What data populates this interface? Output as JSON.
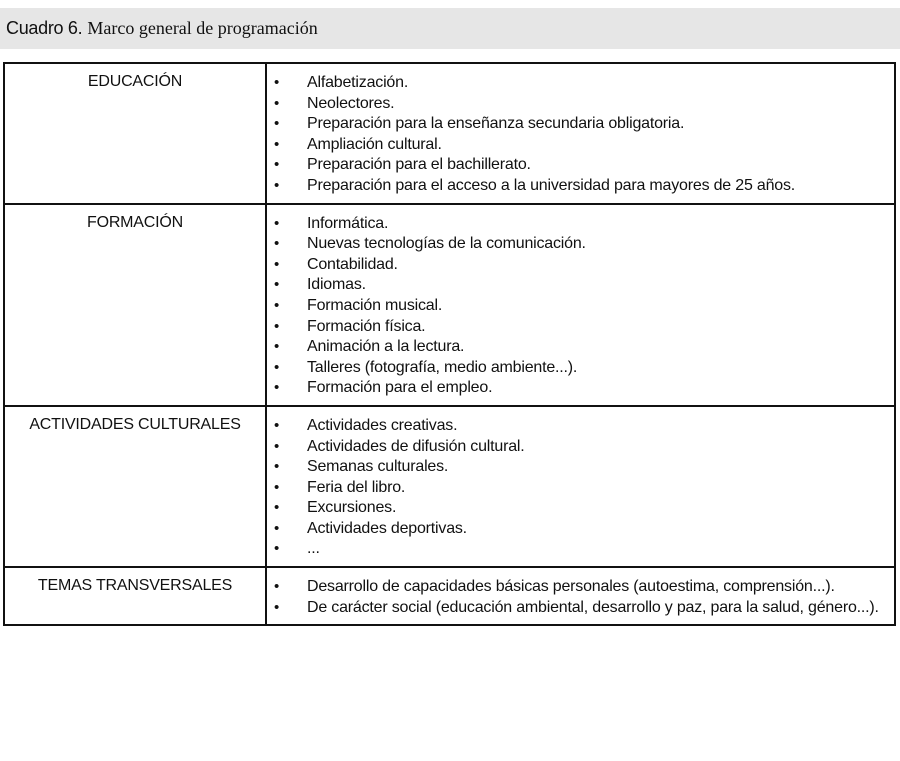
{
  "title": {
    "label": "Cuadro 6",
    "text": "Marco general de programación"
  },
  "rows": [
    {
      "category": "EDUCACIÓN",
      "items": [
        "Alfabetización.",
        "Neolectores.",
        "Preparación para la enseñanza secundaria obligatoria.",
        "Ampliación cultural.",
        "Preparación para el bachillerato.",
        "Preparación para el acceso a la universidad para mayores de 25 años."
      ]
    },
    {
      "category": "FORMACIÓN",
      "items": [
        "Informática.",
        "Nuevas tecnologías de la comunicación.",
        "Contabilidad.",
        "Idiomas.",
        "Formación musical.",
        "Formación física.",
        "Animación a la lectura.",
        "Talleres (fotografía, medio ambiente...).",
        "Formación para el empleo."
      ]
    },
    {
      "category": "ACTIVIDADES CULTURALES",
      "items": [
        "Actividades creativas.",
        "Actividades de difusión cultural.",
        "Semanas culturales.",
        "Feria del libro.",
        "Excursiones.",
        "Actividades deportivas.",
        "..."
      ]
    },
    {
      "category": "TEMAS TRANSVERSALES",
      "items": [
        "Desarrollo de capacidades básicas personales (autoestima, comprensión...).",
        "De carácter social (educación ambiental, desarrollo y paz, para la salud, género...)."
      ]
    }
  ]
}
